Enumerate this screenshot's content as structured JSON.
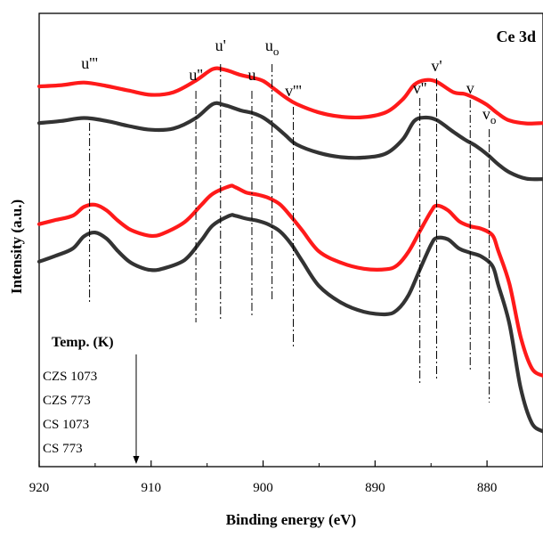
{
  "chart_data": {
    "type": "line",
    "title": "Ce 3d",
    "xlabel": "Binding energy (eV)",
    "ylabel": "Intensity (a.u.)",
    "xlim": [
      920,
      875
    ],
    "x_reversed": true,
    "x_ticks": [
      920,
      910,
      900,
      890,
      880
    ],
    "y_ticks_shown": false,
    "legend": {
      "title": "Temp. (K)",
      "entries": [
        "CZS 1073",
        "CZS 773",
        "CS 1073",
        "CS 773"
      ]
    },
    "colors": {
      "red": "#ff1a1a",
      "black": "#333333"
    },
    "peak_markers": [
      {
        "label": "u'''",
        "x": 915.5
      },
      {
        "label": "u''",
        "x": 906.0
      },
      {
        "label": "u'",
        "x": 903.8
      },
      {
        "label": "u",
        "x": 901.0
      },
      {
        "label": "u",
        "sub": "o",
        "x": 899.2
      },
      {
        "label": "v'''",
        "x": 897.3
      },
      {
        "label": "v''",
        "x": 886.0
      },
      {
        "label": "v'",
        "x": 884.5
      },
      {
        "label": "v",
        "x": 881.5
      },
      {
        "label": "v",
        "sub": "o",
        "x": 879.8
      }
    ],
    "series": [
      {
        "color": "red",
        "x": [
          920,
          918,
          916,
          914,
          912,
          910,
          908,
          906,
          904.5,
          903.5,
          902,
          901,
          900,
          899,
          898,
          897,
          895,
          893,
          891,
          889,
          887.5,
          886.5,
          885.5,
          884.5,
          883,
          882,
          881,
          880,
          879,
          878,
          876.5,
          875
        ],
        "y": [
          0.852,
          0.855,
          0.861,
          0.853,
          0.842,
          0.832,
          0.838,
          0.866,
          0.893,
          0.892,
          0.879,
          0.873,
          0.865,
          0.846,
          0.826,
          0.81,
          0.79,
          0.78,
          0.779,
          0.791,
          0.822,
          0.856,
          0.867,
          0.863,
          0.838,
          0.834,
          0.823,
          0.808,
          0.787,
          0.771,
          0.764,
          0.765
        ]
      },
      {
        "color": "black",
        "x": [
          920,
          918,
          916,
          914,
          912,
          910,
          908,
          906,
          904.5,
          903.5,
          902,
          901,
          900,
          899,
          898,
          897,
          895,
          893,
          891,
          889,
          887.5,
          886.5,
          885.5,
          884.5,
          883,
          882,
          881,
          880,
          879,
          878,
          876.5,
          875
        ],
        "y": [
          0.765,
          0.77,
          0.777,
          0.77,
          0.758,
          0.749,
          0.752,
          0.777,
          0.81,
          0.808,
          0.795,
          0.789,
          0.778,
          0.759,
          0.736,
          0.714,
          0.694,
          0.684,
          0.683,
          0.693,
          0.727,
          0.77,
          0.778,
          0.772,
          0.744,
          0.726,
          0.711,
          0.691,
          0.667,
          0.648,
          0.633,
          0.632
        ]
      },
      {
        "color": "red",
        "x": [
          920,
          918.5,
          917,
          916,
          915,
          914,
          913,
          912,
          911,
          910,
          909,
          907,
          905.5,
          904.5,
          903,
          902.5,
          901.5,
          900.5,
          899.5,
          898.5,
          897.5,
          896.5,
          895,
          893,
          891,
          889,
          888,
          887,
          886,
          885,
          884.5,
          883.5,
          882.5,
          881.5,
          880.5,
          879.5,
          879,
          878,
          877,
          876,
          875
        ],
        "y": [
          0.525,
          0.535,
          0.545,
          0.566,
          0.571,
          0.558,
          0.534,
          0.514,
          0.503,
          0.497,
          0.502,
          0.53,
          0.571,
          0.597,
          0.615,
          0.613,
          0.6,
          0.595,
          0.587,
          0.572,
          0.543,
          0.51,
          0.46,
          0.433,
          0.419,
          0.418,
          0.428,
          0.46,
          0.508,
          0.555,
          0.569,
          0.558,
          0.532,
          0.52,
          0.514,
          0.498,
          0.462,
          0.383,
          0.258,
          0.183,
          0.165
        ]
      },
      {
        "color": "black",
        "x": [
          920,
          918.5,
          917,
          916,
          915,
          914,
          913,
          912,
          911,
          910,
          909,
          907,
          905.5,
          904.5,
          903,
          902.5,
          901.5,
          900.5,
          899.5,
          898.5,
          897.5,
          896.5,
          895,
          893,
          891,
          889,
          888,
          887,
          886,
          885,
          884.5,
          883.5,
          882.5,
          881.5,
          880.5,
          879.5,
          879,
          878,
          877,
          876,
          875
        ],
        "y": [
          0.436,
          0.45,
          0.467,
          0.496,
          0.505,
          0.491,
          0.462,
          0.437,
          0.423,
          0.416,
          0.419,
          0.44,
          0.487,
          0.522,
          0.545,
          0.545,
          0.538,
          0.533,
          0.524,
          0.508,
          0.478,
          0.437,
          0.378,
          0.338,
          0.317,
          0.311,
          0.322,
          0.357,
          0.417,
          0.476,
          0.492,
          0.489,
          0.467,
          0.457,
          0.448,
          0.425,
          0.381,
          0.288,
          0.137,
          0.053,
          0.033
        ]
      }
    ]
  }
}
